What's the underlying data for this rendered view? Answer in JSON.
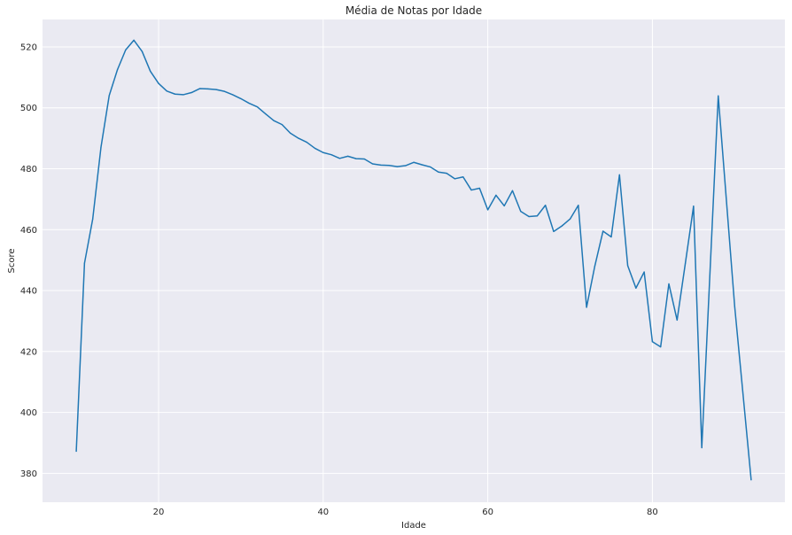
{
  "chart_data": {
    "type": "line",
    "title": "Média de Notas por Idade",
    "xlabel": "Idade",
    "ylabel": "Score",
    "xlim": [
      5.9,
      96.1
    ],
    "ylim": [
      370.5,
      529
    ],
    "grid": true,
    "x_ticks": [
      20,
      40,
      60,
      80
    ],
    "y_ticks": [
      380,
      400,
      420,
      440,
      460,
      480,
      500,
      520
    ],
    "colors": {
      "line": "#1f77b4",
      "plot_bg": "#eaeaf2",
      "grid": "#ffffff",
      "text": "#262626"
    },
    "series": [
      {
        "x": [
          10,
          11,
          12,
          13,
          14,
          15,
          16,
          17,
          18,
          19,
          20,
          21,
          22,
          23,
          24,
          25,
          26,
          27,
          28,
          29,
          30,
          31,
          32,
          33,
          34,
          35,
          36,
          37,
          38,
          39,
          40,
          41,
          42,
          43,
          44,
          45,
          46,
          47,
          48,
          49,
          50,
          51,
          52,
          53,
          54,
          55,
          56,
          57,
          58,
          59,
          60,
          61,
          62,
          63,
          64,
          65,
          66,
          67,
          68,
          69,
          70,
          71,
          72,
          73,
          74,
          75,
          76,
          77,
          78,
          79,
          80,
          81,
          82,
          83,
          84,
          85,
          86,
          88,
          90,
          92
        ],
        "y": [
          387.2,
          449.0,
          463.5,
          487.0,
          504.0,
          512.5,
          519.0,
          522.2,
          518.5,
          512.0,
          508.0,
          505.5,
          504.5,
          504.3,
          505.0,
          506.3,
          506.2,
          506.0,
          505.4,
          504.3,
          503.0,
          501.5,
          500.3,
          498.0,
          495.8,
          494.5,
          491.7,
          490.0,
          488.7,
          486.7,
          485.3,
          484.6,
          483.4,
          484.1,
          483.3,
          483.2,
          481.6,
          481.2,
          481.1,
          480.7,
          481.0,
          482.1,
          481.3,
          480.6,
          478.9,
          478.5,
          476.7,
          477.3,
          473.0,
          473.6,
          466.5,
          471.3,
          467.8,
          472.8,
          466.0,
          464.3,
          464.5,
          468.0,
          459.4,
          461.2,
          463.5,
          468.0,
          434.5,
          448.0,
          459.5,
          457.6,
          478.0,
          448.2,
          440.8,
          446.1,
          423.2,
          421.5,
          442.2,
          430.3,
          448.9,
          467.7,
          388.4,
          503.9,
          434.7,
          377.8
        ]
      }
    ]
  }
}
